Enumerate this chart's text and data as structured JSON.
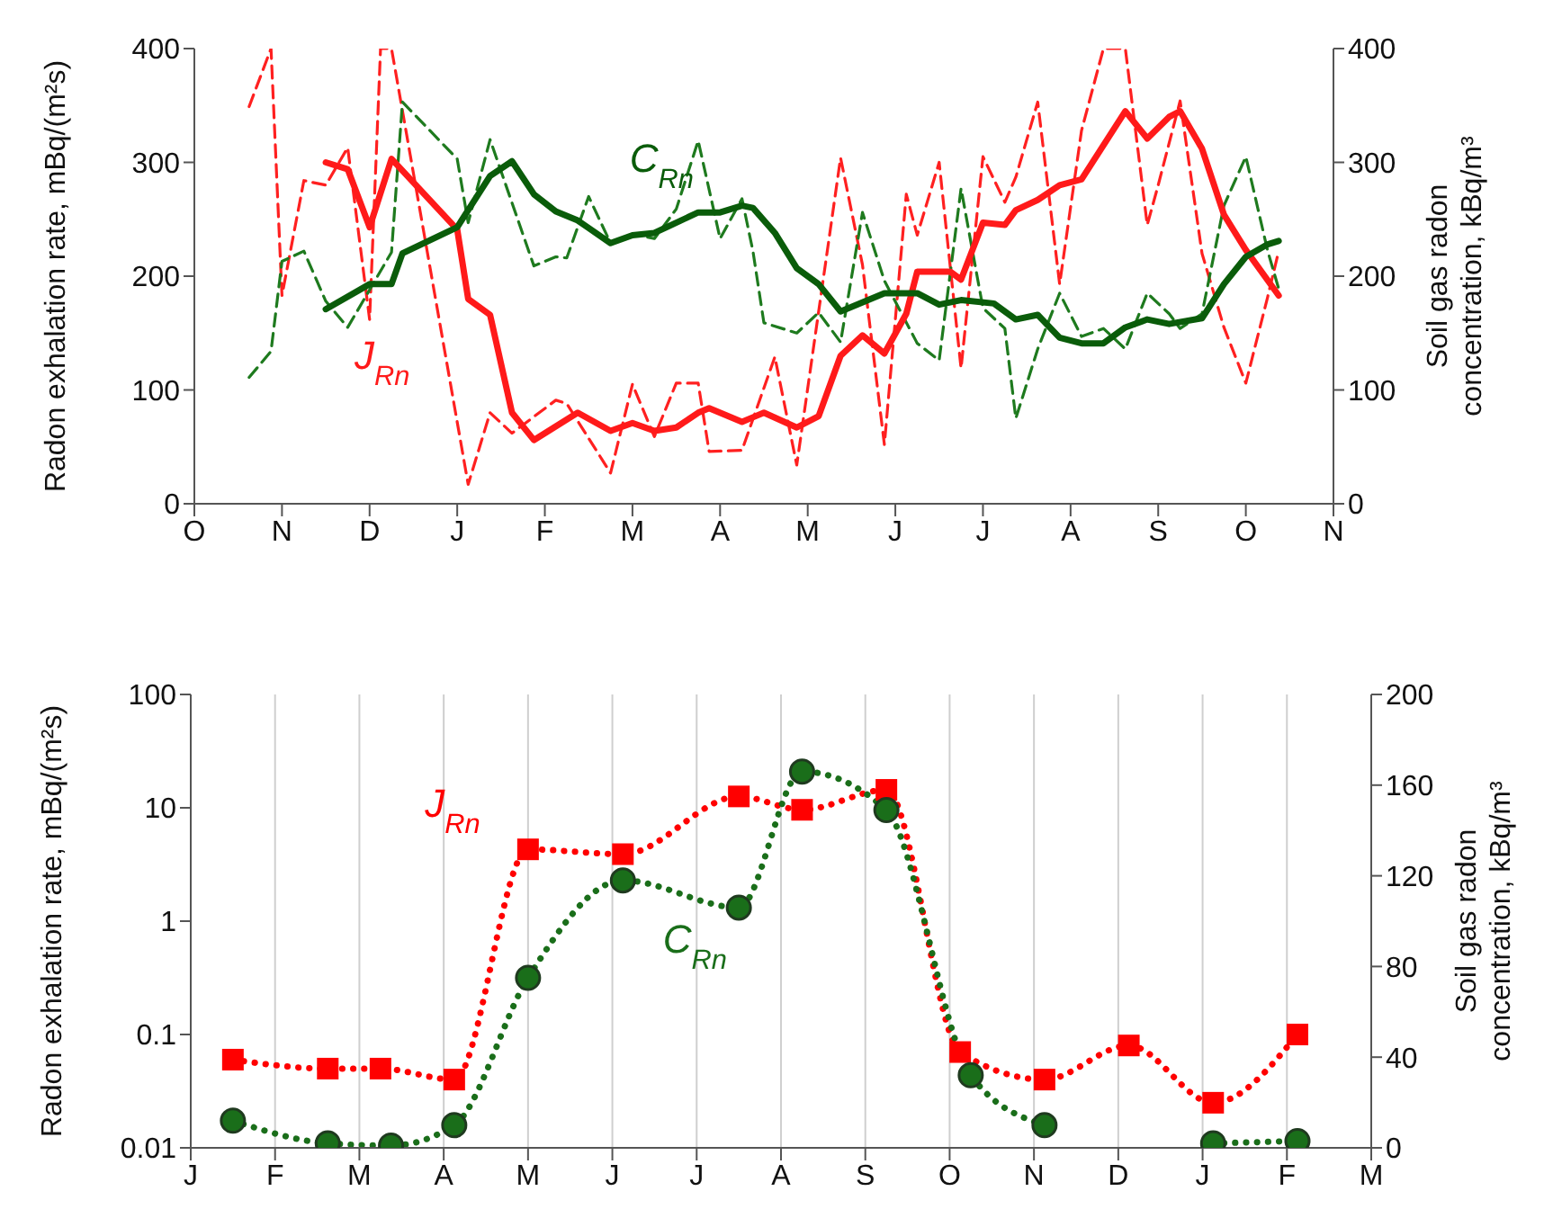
{
  "chart_data": [
    {
      "type": "line",
      "ylabel": "Radon exhalation rate, mBq/(m²s)",
      "y2label": "Soil gas radon concentration, kBq/m³",
      "categories": [
        "O",
        null,
        null,
        null,
        null,
        null,
        null,
        null,
        "N",
        null,
        null,
        null,
        null,
        null,
        null,
        null,
        "D",
        null,
        null,
        null,
        null,
        null,
        null,
        null,
        "J",
        null,
        null,
        null,
        null,
        null,
        null,
        null,
        "F",
        null,
        null,
        null,
        null,
        null,
        null,
        null,
        "M",
        null,
        null,
        null,
        null,
        null,
        null,
        null,
        "A",
        null,
        null,
        null,
        null,
        null,
        null,
        null,
        "M",
        null,
        null,
        null,
        null,
        null,
        null,
        null,
        "J",
        null,
        null,
        null,
        null,
        null,
        null,
        null,
        "J",
        null,
        null,
        null,
        null,
        null,
        null,
        null,
        "A",
        null,
        null,
        null,
        null,
        null,
        null,
        null,
        "S",
        null,
        null,
        null,
        null,
        null,
        null,
        null,
        "O",
        null,
        null,
        null,
        null,
        null,
        null,
        null,
        "N"
      ],
      "ylim": [
        0,
        400
      ],
      "yticks": [
        0,
        100,
        200,
        300,
        400
      ],
      "y2lim": [
        0,
        400
      ],
      "y2ticks": [
        0,
        100,
        200,
        300,
        400
      ],
      "series": [
        {
          "color": "#ff2020",
          "line_style": "dashed",
          "values": [
            null,
            null,
            null,
            null,
            null,
            349,
            null,
            400,
            183,
            null,
            284,
            null,
            280,
            null,
            313,
            null,
            162,
            400,
            400,
            null,
            null,
            null,
            null,
            null,
            null,
            17,
            null,
            80,
            null,
            62,
            null,
            null,
            null,
            91,
            88,
            null,
            null,
            null,
            27,
            null,
            105,
            null,
            59,
            null,
            106,
            null,
            106,
            46,
            null,
            null,
            47,
            null,
            null,
            129,
            null,
            34,
            null,
            null,
            null,
            304,
            null,
            210,
            null,
            52,
            null,
            272,
            236,
            null,
            300,
            null,
            119,
            null,
            305,
            null,
            265,
            287,
            null,
            353,
            null,
            193,
            null,
            328,
            null,
            400,
            null,
            400,
            null,
            245,
            280,
            null,
            354,
            null,
            220,
            null,
            155,
            null,
            106,
            null,
            182,
            222,
            null,
            null,
            null,
            null,
            null
          ]
        },
        {
          "color": "#1e7a1e",
          "line_style": "dashed",
          "axis": "y2",
          "values": [
            null,
            null,
            null,
            null,
            null,
            111,
            null,
            134,
            213,
            null,
            222,
            null,
            178,
            null,
            155,
            null,
            null,
            null,
            221,
            353,
            null,
            null,
            null,
            null,
            303,
            247,
            null,
            320,
            null,
            null,
            null,
            209,
            null,
            217,
            216,
            null,
            270,
            null,
            229,
            null,
            237,
            null,
            233,
            null,
            259,
            null,
            319,
            null,
            233,
            null,
            268,
            222,
            159,
            null,
            null,
            150,
            null,
            168,
            null,
            142,
            null,
            256,
            null,
            196,
            null,
            null,
            141,
            null,
            126,
            null,
            277,
            null,
            172,
            null,
            154,
            75,
            null,
            136,
            null,
            185,
            null,
            147,
            null,
            154,
            null,
            136,
            null,
            185,
            null,
            167,
            154,
            null,
            167,
            null,
            262,
            null,
            305,
            null,
            222,
            189,
            null,
            null,
            null,
            null,
            null
          ]
        },
        {
          "name": "J$_{Rn}$",
          "color": "#ff1a1a",
          "line_style": "solid",
          "values": [
            null,
            null,
            null,
            null,
            null,
            null,
            null,
            null,
            null,
            null,
            null,
            null,
            300,
            null,
            294,
            null,
            243,
            null,
            303,
            null,
            null,
            null,
            null,
            null,
            241,
            180,
            null,
            166,
            null,
            80,
            null,
            56,
            null,
            null,
            null,
            80,
            null,
            null,
            64,
            null,
            71,
            null,
            64,
            null,
            67,
            null,
            80,
            84,
            null,
            null,
            72,
            76,
            80,
            null,
            null,
            67,
            null,
            77,
            null,
            130,
            null,
            148,
            null,
            132,
            null,
            167,
            204,
            null,
            null,
            204,
            197,
            null,
            247,
            null,
            245,
            258,
            null,
            267,
            null,
            280,
            null,
            285,
            null,
            null,
            null,
            345,
            null,
            321,
            null,
            340,
            345,
            null,
            312,
            null,
            254,
            null,
            223,
            null,
            null,
            183,
            null,
            null,
            null,
            null,
            null
          ]
        },
        {
          "name": "C$_{Rn}$",
          "color": "#0a5c0a",
          "line_style": "solid",
          "axis": "y2",
          "values": [
            null,
            null,
            null,
            null,
            null,
            null,
            null,
            null,
            null,
            null,
            null,
            null,
            171,
            null,
            null,
            null,
            193,
            null,
            193,
            220,
            null,
            null,
            null,
            null,
            243,
            null,
            null,
            288,
            null,
            301,
            null,
            272,
            null,
            257,
            null,
            249,
            null,
            null,
            229,
            null,
            236,
            null,
            238,
            null,
            null,
            null,
            256,
            null,
            256,
            null,
            262,
            260,
            null,
            238,
            null,
            207,
            null,
            193,
            null,
            169,
            null,
            null,
            null,
            185,
            null,
            null,
            185,
            null,
            175,
            null,
            179,
            null,
            null,
            176,
            null,
            162,
            null,
            166,
            null,
            146,
            null,
            141,
            null,
            141,
            null,
            155,
            null,
            162,
            null,
            158,
            null,
            null,
            163,
            null,
            193,
            null,
            217,
            null,
            228,
            231,
            null,
            null,
            null,
            null,
            null
          ]
        }
      ]
    },
    {
      "type": "line",
      "ylabel": "Radon exhalation rate, mBq/(m²s)",
      "y2label": "Soil gas radon concentration, kBq/m³",
      "log": true,
      "grid": "x",
      "categories": [
        "J",
        null,
        null,
        null,
        null,
        null,
        null,
        null,
        "F",
        null,
        null,
        null,
        null,
        null,
        null,
        null,
        "M",
        null,
        null,
        null,
        null,
        null,
        null,
        null,
        "A",
        null,
        null,
        null,
        null,
        null,
        null,
        null,
        "M",
        null,
        null,
        null,
        null,
        null,
        null,
        null,
        "J",
        null,
        null,
        null,
        null,
        null,
        null,
        null,
        "J",
        null,
        null,
        null,
        null,
        null,
        null,
        null,
        "A",
        null,
        null,
        null,
        null,
        null,
        null,
        null,
        "S",
        null,
        null,
        null,
        null,
        null,
        null,
        null,
        "O",
        null,
        null,
        null,
        null,
        null,
        null,
        null,
        "N",
        null,
        null,
        null,
        null,
        null,
        null,
        null,
        "D",
        null,
        null,
        null,
        null,
        null,
        null,
        null,
        "J",
        null,
        null,
        null,
        null,
        null,
        null,
        null,
        "F",
        null,
        null,
        null,
        null,
        null,
        null,
        null,
        "M"
      ],
      "ylim": [
        0.01,
        100
      ],
      "yticks": [
        0.01,
        0.1,
        1,
        10,
        100
      ],
      "y2lim": [
        0,
        200
      ],
      "y2ticks": [
        0,
        40,
        80,
        120,
        160,
        200
      ],
      "series": [
        {
          "name": "J$_{Rn}$",
          "color": "#ff0000",
          "line_style": "dotted",
          "marker": "square",
          "values": [
            null,
            null,
            null,
            null,
            0.06,
            null,
            null,
            null,
            null,
            null,
            null,
            null,
            null,
            0.05,
            null,
            null,
            null,
            null,
            0.05,
            null,
            null,
            null,
            null,
            null,
            null,
            0.04,
            null,
            null,
            null,
            null,
            null,
            null,
            4.3,
            null,
            null,
            null,
            null,
            null,
            null,
            null,
            null,
            3.9,
            null,
            null,
            null,
            null,
            null,
            null,
            null,
            null,
            null,
            null,
            12.6,
            null,
            null,
            null,
            null,
            null,
            9.6,
            null,
            null,
            null,
            null,
            null,
            null,
            null,
            14.4,
            null,
            null,
            null,
            null,
            null,
            null,
            0.07,
            null,
            null,
            null,
            null,
            null,
            null,
            null,
            0.04,
            null,
            null,
            null,
            null,
            null,
            null,
            null,
            0.08,
            null,
            null,
            null,
            null,
            null,
            null,
            null,
            0.025,
            null,
            null,
            null,
            null,
            null,
            null,
            null,
            0.1,
            null,
            null,
            null,
            null,
            null,
            null,
            null
          ]
        },
        {
          "name": "C$_{Rn}$",
          "color": "#1a6e1a",
          "line_style": "dotted",
          "marker": "circle",
          "axis": "y2",
          "values": [
            null,
            null,
            null,
            null,
            12,
            null,
            null,
            null,
            null,
            null,
            null,
            null,
            null,
            2,
            null,
            null,
            null,
            null,
            null,
            1,
            null,
            null,
            null,
            null,
            null,
            10,
            null,
            null,
            null,
            null,
            null,
            null,
            75,
            null,
            null,
            null,
            null,
            null,
            null,
            null,
            null,
            118,
            null,
            null,
            null,
            null,
            null,
            null,
            null,
            null,
            null,
            null,
            106,
            null,
            null,
            null,
            null,
            null,
            166,
            null,
            null,
            null,
            null,
            null,
            null,
            null,
            149,
            null,
            null,
            null,
            null,
            null,
            null,
            null,
            32,
            null,
            null,
            null,
            null,
            null,
            null,
            10,
            null,
            null,
            null,
            null,
            null,
            null,
            null,
            null,
            null,
            null,
            null,
            null,
            null,
            null,
            null,
            null,
            null,
            null,
            null,
            null,
            null,
            null,
            null,
            null,
            null,
            null,
            null,
            null,
            null,
            null,
            null
          ]
        },
        {
          "color": "#1a6e1a",
          "line_style": "dotted",
          "marker": "circle",
          "axis": "y2",
          "values": [
            null,
            null,
            null,
            null,
            null,
            null,
            null,
            null,
            null,
            null,
            null,
            null,
            null,
            null,
            null,
            null,
            null,
            null,
            null,
            null,
            null,
            null,
            null,
            null,
            null,
            null,
            null,
            null,
            null,
            null,
            null,
            null,
            null,
            null,
            null,
            null,
            null,
            null,
            null,
            null,
            null,
            null,
            null,
            null,
            null,
            null,
            null,
            null,
            null,
            null,
            null,
            null,
            null,
            null,
            null,
            null,
            null,
            null,
            null,
            null,
            null,
            null,
            null,
            null,
            null,
            null,
            null,
            null,
            null,
            null,
            null,
            null,
            null,
            null,
            null,
            null,
            null,
            null,
            null,
            null,
            null,
            null,
            null,
            null,
            null,
            null,
            null,
            null,
            null,
            null,
            null,
            null,
            null,
            null,
            null,
            null,
            null,
            2,
            null,
            null,
            null,
            null,
            null,
            null,
            null,
            3,
            null,
            null,
            null,
            null,
            null,
            null,
            null
          ]
        }
      ]
    }
  ]
}
